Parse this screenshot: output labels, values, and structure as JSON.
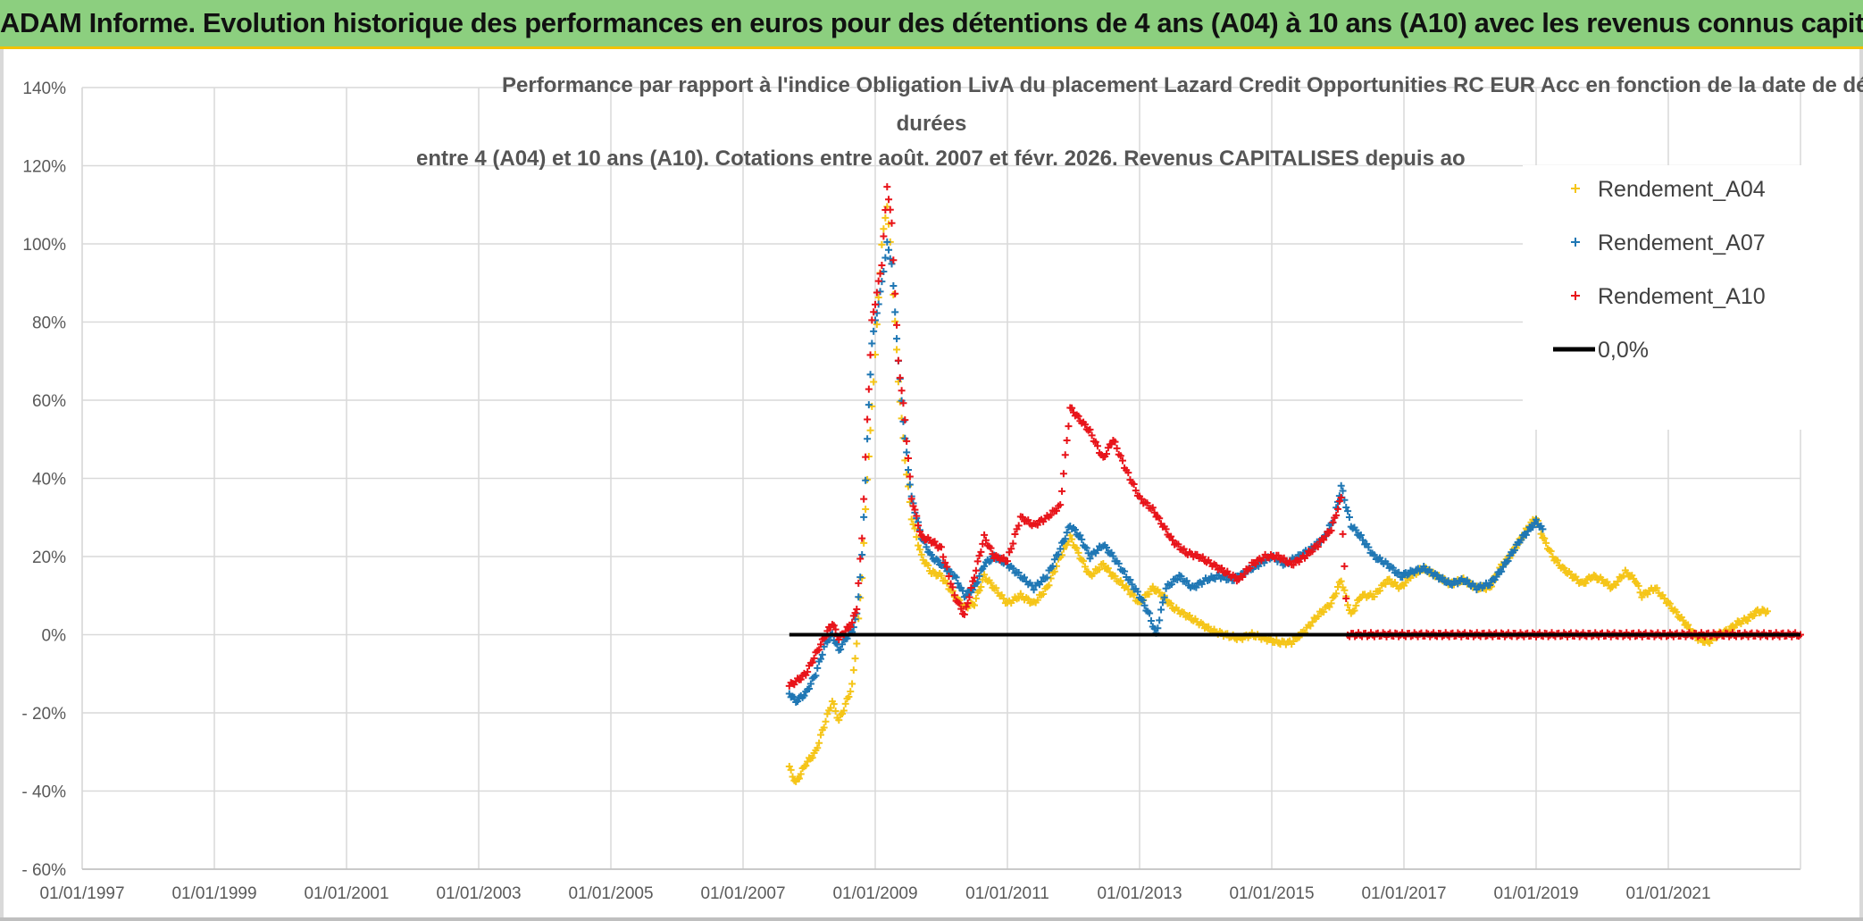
{
  "header": {
    "title": "ADAM Informe. Evolution historique des performances en euros pour des détentions de 4 ans (A04) à 10 ans (A10) avec les revenus connus capitalisés"
  },
  "chart_data": {
    "type": "scatter",
    "title_lines": [
      "Performance par rapport à l'indice Obligation LivA  du placement Lazard Credit Opportunities RC EUR Acc en fonction de la date de début pour des",
      "durées",
      "entre 4 (A04) et 10 ans (A10). Cotations entre août. 2007 et févr. 2026. Revenus CAPITALISES depuis ao"
    ],
    "x_range": [
      1997.0,
      2023.0
    ],
    "y_range": [
      -60,
      140
    ],
    "y_ticks": [
      140,
      120,
      100,
      80,
      60,
      40,
      20,
      0,
      -20,
      -40,
      -60
    ],
    "y_tick_labels": [
      "140%",
      "120%",
      "100%",
      "80%",
      "60%",
      "40%",
      "20%",
      "0%",
      "- 20%",
      "- 40%",
      "- 60%"
    ],
    "x_ticks": [
      1997,
      1999,
      2001,
      2003,
      2005,
      2007,
      2009,
      2011,
      2013,
      2015,
      2017,
      2019,
      2021
    ],
    "x_tick_labels": [
      "01/01/1997",
      "01/01/1999",
      "01/01/2001",
      "01/01/2003",
      "01/01/2005",
      "01/01/2007",
      "01/01/2009",
      "01/01/2011",
      "01/01/2013",
      "01/01/2015",
      "01/01/2017",
      "01/01/2019",
      "01/01/2021"
    ],
    "grid": true,
    "legend_position": "top-right",
    "series": [
      {
        "name": "Rendement_A04",
        "color": "#f5c518",
        "marker": "plus",
        "points": [
          [
            2007.7,
            -34
          ],
          [
            2007.8,
            -38
          ],
          [
            2007.95,
            -33
          ],
          [
            2008.1,
            -30
          ],
          [
            2008.25,
            -22
          ],
          [
            2008.35,
            -17
          ],
          [
            2008.45,
            -22
          ],
          [
            2008.55,
            -18
          ],
          [
            2008.65,
            -13
          ],
          [
            2008.72,
            -2
          ],
          [
            2008.8,
            15
          ],
          [
            2008.88,
            40
          ],
          [
            2008.95,
            58
          ],
          [
            2009.0,
            72
          ],
          [
            2009.1,
            100
          ],
          [
            2009.18,
            110
          ],
          [
            2009.25,
            95
          ],
          [
            2009.35,
            65
          ],
          [
            2009.45,
            45
          ],
          [
            2009.55,
            30
          ],
          [
            2009.7,
            20
          ],
          [
            2009.85,
            16
          ],
          [
            2010.0,
            15
          ],
          [
            2010.2,
            10
          ],
          [
            2010.35,
            7
          ],
          [
            2010.5,
            8
          ],
          [
            2010.65,
            15
          ],
          [
            2010.8,
            12
          ],
          [
            2011.0,
            8
          ],
          [
            2011.2,
            10
          ],
          [
            2011.4,
            8
          ],
          [
            2011.6,
            12
          ],
          [
            2011.8,
            20
          ],
          [
            2011.95,
            25
          ],
          [
            2012.1,
            20
          ],
          [
            2012.25,
            15
          ],
          [
            2012.45,
            18
          ],
          [
            2012.6,
            15
          ],
          [
            2012.8,
            12
          ],
          [
            2013.0,
            8
          ],
          [
            2013.2,
            12
          ],
          [
            2013.35,
            10
          ],
          [
            2013.5,
            7
          ],
          [
            2013.7,
            5
          ],
          [
            2013.9,
            3
          ],
          [
            2014.1,
            1
          ],
          [
            2014.3,
            0
          ],
          [
            2014.5,
            -1
          ],
          [
            2014.7,
            0
          ],
          [
            2014.9,
            -1
          ],
          [
            2015.1,
            -2
          ],
          [
            2015.3,
            -2
          ],
          [
            2015.5,
            1
          ],
          [
            2015.7,
            5
          ],
          [
            2015.9,
            8
          ],
          [
            2016.05,
            14
          ],
          [
            2016.2,
            5
          ],
          [
            2016.35,
            10
          ],
          [
            2016.55,
            10
          ],
          [
            2016.75,
            14
          ],
          [
            2016.95,
            12
          ],
          [
            2017.1,
            15
          ],
          [
            2017.3,
            17
          ],
          [
            2017.5,
            15
          ],
          [
            2017.7,
            13
          ],
          [
            2017.9,
            14
          ],
          [
            2018.1,
            12
          ],
          [
            2018.3,
            12
          ],
          [
            2018.45,
            17
          ],
          [
            2018.6,
            20
          ],
          [
            2018.75,
            24
          ],
          [
            2018.9,
            28
          ],
          [
            2019.0,
            30
          ],
          [
            2019.1,
            25
          ],
          [
            2019.25,
            20
          ],
          [
            2019.4,
            17
          ],
          [
            2019.55,
            15
          ],
          [
            2019.7,
            13
          ],
          [
            2019.85,
            15
          ],
          [
            2020.0,
            14
          ],
          [
            2020.15,
            12
          ],
          [
            2020.35,
            16
          ],
          [
            2020.5,
            14
          ],
          [
            2020.6,
            10
          ],
          [
            2020.8,
            12
          ],
          [
            2021.0,
            8
          ],
          [
            2021.15,
            5
          ],
          [
            2021.3,
            2
          ],
          [
            2021.45,
            -1
          ],
          [
            2021.6,
            -2
          ],
          [
            2021.75,
            0
          ],
          [
            2021.9,
            1
          ],
          [
            2022.05,
            3
          ],
          [
            2022.2,
            4
          ],
          [
            2022.35,
            6
          ],
          [
            2022.5,
            6
          ]
        ]
      },
      {
        "name": "Rendement_A07",
        "color": "#1f77b4",
        "marker": "plus",
        "points": [
          [
            2007.7,
            -15
          ],
          [
            2007.8,
            -17
          ],
          [
            2007.95,
            -15
          ],
          [
            2008.1,
            -10
          ],
          [
            2008.25,
            -2
          ],
          [
            2008.35,
            0
          ],
          [
            2008.45,
            -4
          ],
          [
            2008.55,
            -1
          ],
          [
            2008.65,
            1
          ],
          [
            2008.72,
            5
          ],
          [
            2008.8,
            20
          ],
          [
            2008.88,
            50
          ],
          [
            2008.95,
            75
          ],
          [
            2009.0,
            80
          ],
          [
            2009.1,
            90
          ],
          [
            2009.18,
            100
          ],
          [
            2009.25,
            95
          ],
          [
            2009.35,
            70
          ],
          [
            2009.45,
            50
          ],
          [
            2009.55,
            35
          ],
          [
            2009.7,
            25
          ],
          [
            2009.85,
            20
          ],
          [
            2010.0,
            18
          ],
          [
            2010.2,
            15
          ],
          [
            2010.35,
            10
          ],
          [
            2010.5,
            12
          ],
          [
            2010.65,
            18
          ],
          [
            2010.8,
            20
          ],
          [
            2011.0,
            18
          ],
          [
            2011.2,
            15
          ],
          [
            2011.4,
            12
          ],
          [
            2011.6,
            15
          ],
          [
            2011.8,
            22
          ],
          [
            2011.95,
            28
          ],
          [
            2012.1,
            25
          ],
          [
            2012.25,
            20
          ],
          [
            2012.45,
            23
          ],
          [
            2012.6,
            20
          ],
          [
            2012.8,
            15
          ],
          [
            2013.0,
            10
          ],
          [
            2013.15,
            5
          ],
          [
            2013.25,
            0
          ],
          [
            2013.4,
            12
          ],
          [
            2013.6,
            15
          ],
          [
            2013.8,
            12
          ],
          [
            2014.0,
            14
          ],
          [
            2014.2,
            15
          ],
          [
            2014.4,
            14
          ],
          [
            2014.6,
            16
          ],
          [
            2014.8,
            18
          ],
          [
            2015.0,
            20
          ],
          [
            2015.2,
            18
          ],
          [
            2015.4,
            20
          ],
          [
            2015.6,
            22
          ],
          [
            2015.8,
            25
          ],
          [
            2015.95,
            30
          ],
          [
            2016.05,
            38
          ],
          [
            2016.2,
            28
          ],
          [
            2016.35,
            25
          ],
          [
            2016.55,
            20
          ],
          [
            2016.75,
            18
          ],
          [
            2016.95,
            15
          ],
          [
            2017.1,
            16
          ],
          [
            2017.3,
            17
          ],
          [
            2017.5,
            15
          ],
          [
            2017.7,
            13
          ],
          [
            2017.9,
            14
          ],
          [
            2018.1,
            12
          ],
          [
            2018.3,
            13
          ],
          [
            2018.45,
            16
          ],
          [
            2018.6,
            20
          ],
          [
            2018.75,
            24
          ],
          [
            2018.9,
            27
          ],
          [
            2019.0,
            29
          ],
          [
            2019.1,
            27
          ]
        ]
      },
      {
        "name": "Rendement_A10",
        "color": "#e8141a",
        "marker": "plus",
        "points": [
          [
            2007.7,
            -13
          ],
          [
            2007.8,
            -12
          ],
          [
            2007.95,
            -10
          ],
          [
            2008.1,
            -5
          ],
          [
            2008.25,
            0
          ],
          [
            2008.35,
            3
          ],
          [
            2008.45,
            -1
          ],
          [
            2008.55,
            1
          ],
          [
            2008.65,
            3
          ],
          [
            2008.72,
            7
          ],
          [
            2008.8,
            25
          ],
          [
            2008.88,
            55
          ],
          [
            2008.95,
            80
          ],
          [
            2009.0,
            85
          ],
          [
            2009.1,
            95
          ],
          [
            2009.18,
            115
          ],
          [
            2009.25,
            105
          ],
          [
            2009.35,
            70
          ],
          [
            2009.45,
            55
          ],
          [
            2009.55,
            35
          ],
          [
            2009.7,
            25
          ],
          [
            2009.85,
            24
          ],
          [
            2010.0,
            22
          ],
          [
            2010.2,
            10
          ],
          [
            2010.35,
            5
          ],
          [
            2010.5,
            15
          ],
          [
            2010.65,
            25
          ],
          [
            2010.8,
            20
          ],
          [
            2011.0,
            19
          ],
          [
            2011.2,
            30
          ],
          [
            2011.4,
            28
          ],
          [
            2011.6,
            30
          ],
          [
            2011.8,
            33
          ],
          [
            2011.95,
            58
          ],
          [
            2012.1,
            55
          ],
          [
            2012.25,
            52
          ],
          [
            2012.45,
            45
          ],
          [
            2012.6,
            50
          ],
          [
            2012.8,
            42
          ],
          [
            2013.0,
            35
          ],
          [
            2013.2,
            32
          ],
          [
            2013.35,
            28
          ],
          [
            2013.5,
            24
          ],
          [
            2013.7,
            21
          ],
          [
            2013.9,
            20
          ],
          [
            2014.1,
            18
          ],
          [
            2014.3,
            16
          ],
          [
            2014.5,
            14
          ],
          [
            2014.7,
            18
          ],
          [
            2014.9,
            20
          ],
          [
            2015.1,
            20
          ],
          [
            2015.3,
            18
          ],
          [
            2015.5,
            20
          ],
          [
            2015.7,
            23
          ],
          [
            2015.9,
            27
          ],
          [
            2016.05,
            35
          ],
          [
            2016.15,
            0
          ],
          [
            2016.5,
            0
          ],
          [
            2017.0,
            0
          ],
          [
            2017.5,
            0
          ],
          [
            2018.0,
            0
          ],
          [
            2018.5,
            0
          ],
          [
            2019.0,
            0
          ],
          [
            2019.5,
            0
          ],
          [
            2020.0,
            0
          ],
          [
            2020.5,
            0
          ],
          [
            2021.0,
            0
          ],
          [
            2021.5,
            0
          ],
          [
            2022.0,
            0
          ],
          [
            2022.5,
            0
          ],
          [
            2023.0,
            0
          ]
        ]
      }
    ],
    "reference_line": {
      "name": "0,0%",
      "color": "#000000",
      "y": 0,
      "x_from": 2007.7,
      "x_to": 2023.0
    }
  }
}
